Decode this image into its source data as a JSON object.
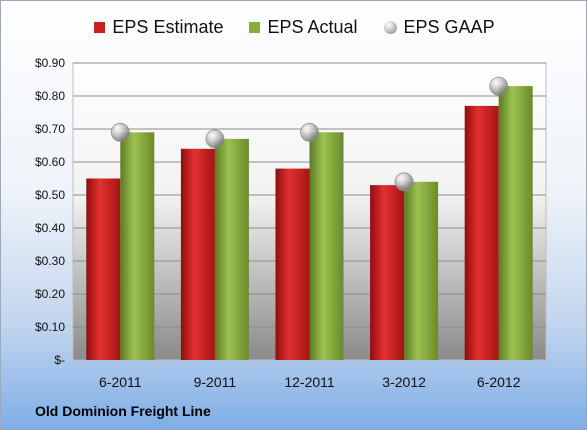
{
  "chart_data": {
    "type": "bar",
    "categories": [
      "6-2011",
      "9-2011",
      "12-2011",
      "3-2012",
      "6-2012"
    ],
    "series": [
      {
        "name": "EPS Estimate",
        "values": [
          0.55,
          0.64,
          0.58,
          0.53,
          0.77
        ],
        "color": "#cc1f1f",
        "mark": "bar"
      },
      {
        "name": "EPS Actual",
        "values": [
          0.69,
          0.67,
          0.69,
          0.54,
          0.83
        ],
        "color": "#8aac3f",
        "mark": "bar"
      },
      {
        "name": "EPS GAAP",
        "values": [
          0.69,
          0.67,
          0.69,
          0.54,
          0.83
        ],
        "color": "#a8a8a8",
        "mark": "marker"
      }
    ],
    "yticks": [
      "$-",
      "$0.10",
      "$0.20",
      "$0.30",
      "$0.40",
      "$0.50",
      "$0.60",
      "$0.70",
      "$0.80",
      "$0.90"
    ],
    "ylim": [
      0,
      0.9
    ],
    "grid": true,
    "legend_position": "top"
  },
  "footer": {
    "company": "Old Dominion Freight Line"
  }
}
